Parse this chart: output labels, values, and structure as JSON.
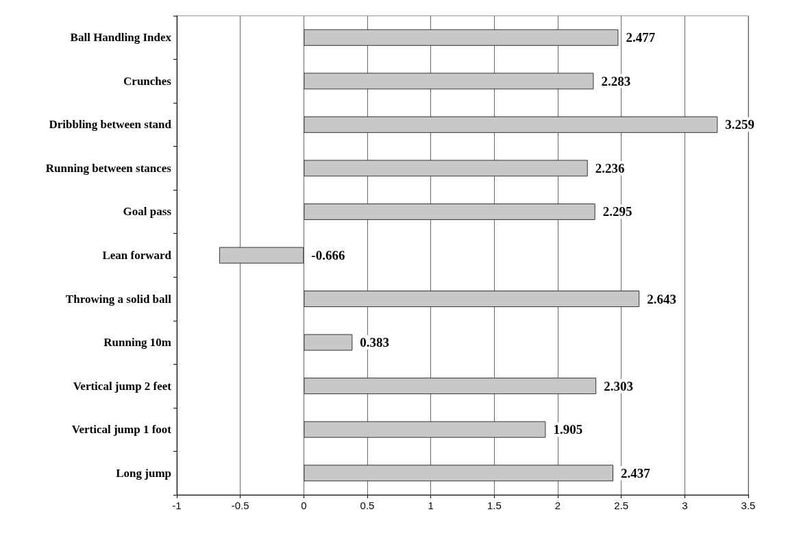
{
  "chart_data": {
    "type": "bar",
    "orientation": "horizontal",
    "categories": [
      "Ball Handling Index",
      "Crunches",
      "Dribbling between stand",
      "Running between stances",
      "Goal pass",
      "Lean forward",
      "Throwing a solid ball",
      "Running 10m",
      "Vertical jump 2 feet",
      "Vertical jump 1 foot",
      "Long jump"
    ],
    "values": [
      2.477,
      2.283,
      3.259,
      2.236,
      2.295,
      -0.666,
      2.643,
      0.383,
      2.303,
      1.905,
      2.437
    ],
    "color": "#c8c8c8",
    "xlim": [
      -1,
      3.5
    ],
    "xticks": [
      -1,
      -0.5,
      0,
      0.5,
      1,
      1.5,
      2,
      2.5,
      3,
      3.5
    ],
    "grid": "x",
    "data_labels": true
  }
}
